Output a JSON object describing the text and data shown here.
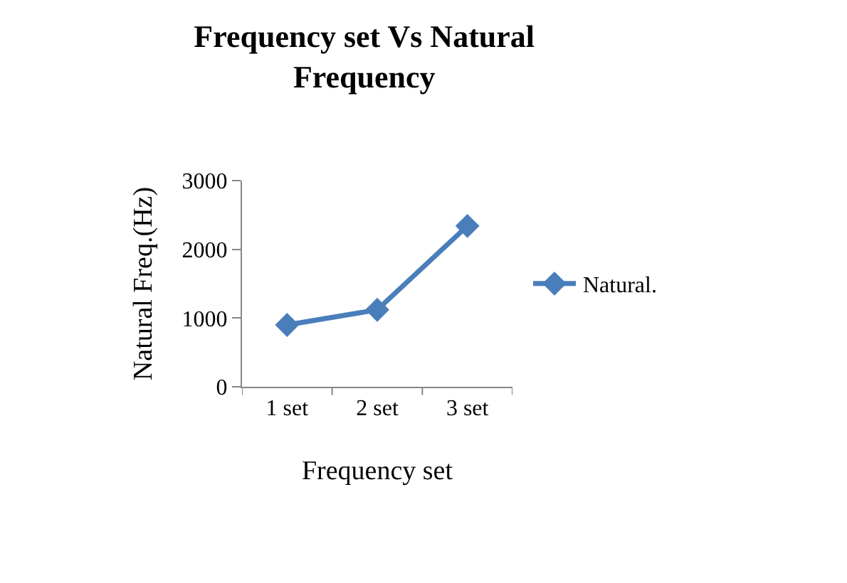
{
  "chart_data": {
    "type": "line",
    "title": "Frequency set Vs Natural Frequency",
    "xlabel": "Frequency set",
    "ylabel": "Natural Freq.(Hz)",
    "categories": [
      "1 set",
      "2 set",
      "3 set"
    ],
    "series": [
      {
        "name": "Natural.",
        "color": "#4a7ebb",
        "values": [
          900,
          1120,
          2340
        ]
      }
    ],
    "ylim": [
      0,
      3000
    ],
    "yticks": [
      0,
      1000,
      2000,
      3000
    ],
    "legend": "right",
    "marker": "diamond",
    "line_style": "solid"
  }
}
